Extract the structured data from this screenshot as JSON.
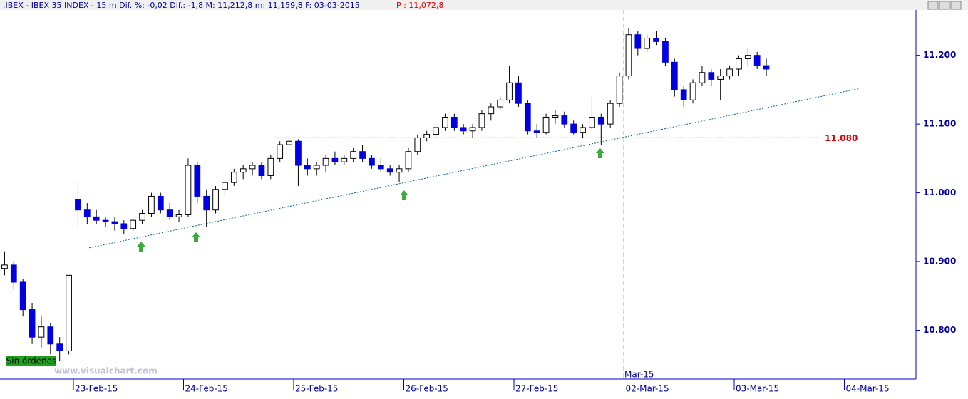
{
  "chart_data": {
    "type": "candlestick",
    "title": ".IBEX - IBEX 35 INDEX -  15 m Dif. %: -0,02 Dif.: -1,8 M: 11,212,8 m: 11,159,8 F: 03-03-2015",
    "title_price": "P : 11,072,8",
    "status": "Sin órdenes",
    "watermark": "www.visualchart.com",
    "month_label": "Mar-15",
    "xticks": [
      "23-Feb-15",
      "24-Feb-15",
      "25-Feb-15",
      "26-Feb-15",
      "27-Feb-15",
      "02-Mar-15",
      "03-Mar-15",
      "04-Mar-15"
    ],
    "ylim": [
      10729,
      11266
    ],
    "yticks": [
      {
        "value": 10800,
        "label": "10.800"
      },
      {
        "value": 10900,
        "label": "10.900"
      },
      {
        "value": 11000,
        "label": "11.000"
      },
      {
        "value": 11100,
        "label": "11.100"
      },
      {
        "value": 11200,
        "label": "11.200"
      }
    ],
    "level_line": {
      "value": 11080,
      "label": "11.080",
      "color": "#e00000"
    },
    "trendline": {
      "start": 10920,
      "end": 11152
    },
    "up_color": "#ffffff",
    "down_color": "#0000e0",
    "open": [
      10890,
      10895,
      10870,
      10830,
      10790,
      10805,
      10780,
      10770,
      10990,
      10975,
      10965,
      10960,
      10958,
      10955,
      10948,
      10960,
      10970,
      10995,
      10975,
      10965,
      10968,
      11040,
      10995,
      10975,
      11005,
      11015,
      11030,
      11035,
      11040,
      11025,
      11050,
      11070,
      11075,
      11040,
      11035,
      11040,
      11050,
      11045,
      11050,
      11060,
      11050,
      11040,
      11035,
      11030,
      11035,
      11060,
      11080,
      11085,
      11095,
      11110,
      11095,
      11090,
      11095,
      11115,
      11125,
      11135,
      11160,
      11130,
      11090,
      11088,
      11110,
      11112,
      11100,
      11088,
      11095,
      11110,
      11100,
      11130,
      11170,
      11230,
      11210,
      11225,
      11220,
      11190,
      11150,
      11135,
      11160,
      11175,
      11165,
      11170,
      11180,
      11195,
      11200,
      11185
    ],
    "high": [
      10915,
      10900,
      10875,
      10840,
      10820,
      10810,
      10790,
      10880,
      11015,
      10985,
      10975,
      10965,
      10965,
      10960,
      10962,
      10975,
      11000,
      11000,
      10985,
      10975,
      11050,
      11045,
      11005,
      11010,
      11020,
      11035,
      11040,
      11045,
      11045,
      11055,
      11075,
      11080,
      11078,
      11050,
      11045,
      11055,
      11060,
      11055,
      11065,
      11070,
      11055,
      11050,
      11040,
      11040,
      11065,
      11085,
      11090,
      11100,
      11115,
      11115,
      11100,
      11100,
      11120,
      11130,
      11140,
      11185,
      11170,
      11135,
      11100,
      11115,
      11120,
      11118,
      11105,
      11100,
      11140,
      11115,
      11135,
      11175,
      11240,
      11235,
      11230,
      11235,
      11225,
      11195,
      11155,
      11165,
      11185,
      11180,
      11180,
      11185,
      11200,
      11210,
      11205,
      11195
    ],
    "low": [
      10880,
      10860,
      10820,
      10780,
      10775,
      10765,
      10755,
      10765,
      10950,
      10955,
      10955,
      10950,
      10945,
      10940,
      10945,
      10955,
      10965,
      10970,
      10960,
      10958,
      10965,
      10985,
      10950,
      10970,
      10995,
      11010,
      11020,
      11025,
      11020,
      11020,
      11045,
      11060,
      11010,
      11025,
      11025,
      11030,
      11040,
      11040,
      11045,
      11045,
      11035,
      11030,
      11025,
      11015,
      11030,
      11055,
      11075,
      11080,
      11090,
      11090,
      11085,
      11080,
      11090,
      11105,
      11120,
      11130,
      11125,
      11085,
      11080,
      11085,
      11100,
      11095,
      11085,
      11080,
      11090,
      11070,
      11095,
      11125,
      11165,
      11200,
      11205,
      11215,
      11185,
      11140,
      11125,
      11130,
      11155,
      11155,
      11135,
      11165,
      11170,
      11185,
      11180,
      11170
    ],
    "close": [
      10895,
      10870,
      10830,
      10790,
      10805,
      10780,
      10770,
      10880,
      10975,
      10965,
      10960,
      10958,
      10955,
      10948,
      10960,
      10970,
      10995,
      10975,
      10965,
      10968,
      11040,
      10995,
      10975,
      11005,
      11015,
      11030,
      11035,
      11040,
      11025,
      11050,
      11070,
      11075,
      11040,
      11035,
      11040,
      11050,
      11045,
      11050,
      11060,
      11050,
      11040,
      11035,
      11030,
      11035,
      11060,
      11080,
      11085,
      11095,
      11110,
      11095,
      11090,
      11095,
      11115,
      11125,
      11135,
      11160,
      11130,
      11090,
      11088,
      11110,
      11112,
      11100,
      11088,
      11095,
      11110,
      11100,
      11130,
      11170,
      11230,
      11210,
      11225,
      11220,
      11190,
      11150,
      11135,
      11160,
      11175,
      11165,
      11170,
      11180,
      11195,
      11200,
      11185,
      11180
    ]
  }
}
